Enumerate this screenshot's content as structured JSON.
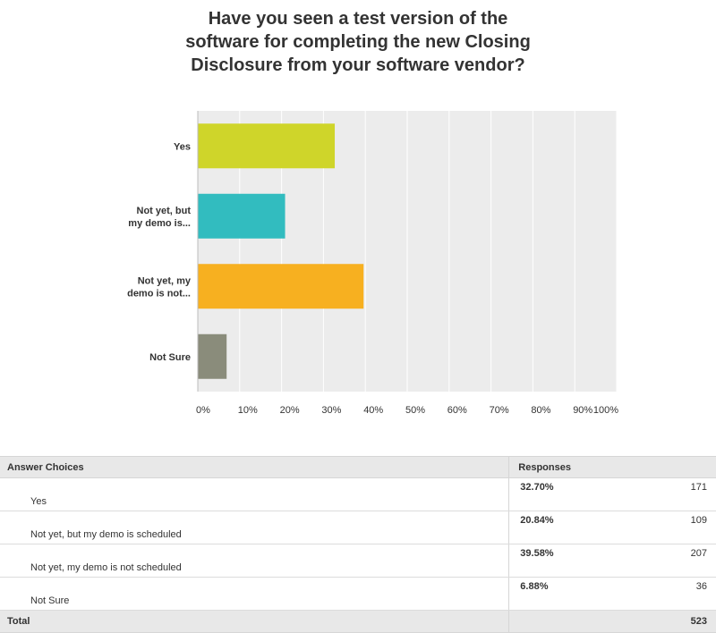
{
  "chart_data": {
    "type": "bar",
    "orientation": "horizontal",
    "title": "Have you seen a test version of the\nsoftware for completing the new Closing\nDisclosure from your software vendor?",
    "categories": [
      "Yes",
      "Not yet, but my demo is...",
      "Not yet, my demo is not...",
      "Not Sure"
    ],
    "category_lines": [
      [
        "Yes"
      ],
      [
        "Not yet, but",
        "my demo is..."
      ],
      [
        "Not yet, my",
        "demo is not..."
      ],
      [
        "Not Sure"
      ]
    ],
    "values": [
      32.7,
      20.84,
      39.58,
      6.88
    ],
    "colors": [
      "#cfd52a",
      "#32bcbf",
      "#f7b020",
      "#8a8c7b"
    ],
    "xlim": [
      0,
      100
    ],
    "xticks": [
      "0%",
      "10%",
      "20%",
      "30%",
      "40%",
      "50%",
      "60%",
      "70%",
      "80%",
      "90%",
      "100%"
    ],
    "grid": true,
    "xlabel": "",
    "ylabel": ""
  },
  "table": {
    "header": {
      "choice": "Answer Choices",
      "responses": "Responses"
    },
    "rows": [
      {
        "choice": "Yes",
        "percent": "32.70%",
        "count": "171"
      },
      {
        "choice": "Not yet, but my demo is scheduled",
        "percent": "20.84%",
        "count": "109"
      },
      {
        "choice": "Not yet, my demo is not scheduled",
        "percent": "39.58%",
        "count": "207"
      },
      {
        "choice": "Not Sure",
        "percent": "6.88%",
        "count": "36"
      }
    ],
    "total_label": "Total",
    "total": "523"
  }
}
